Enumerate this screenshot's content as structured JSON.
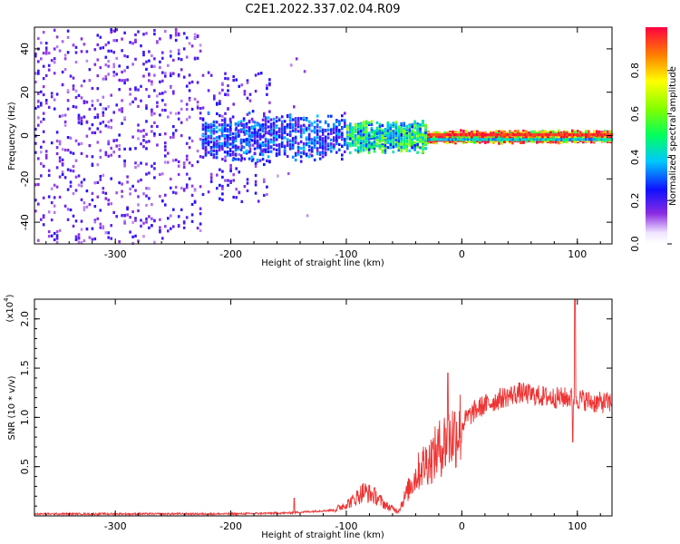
{
  "title": "C2E1.2022.337.02.04.R09",
  "colors": {
    "snr_line": "#ee3333",
    "spectrogram_sparse": "#b98cf0",
    "spectrogram_dense": "#6a00ee",
    "spectrogram_hot": "#00d4e0",
    "axis": "#000000"
  },
  "chart_data": [
    {
      "type": "heatmap",
      "xlabel": "Height of straight line (km)",
      "ylabel": "Frequency (Hz)",
      "xlim": [
        -370,
        130
      ],
      "ylim": [
        -50,
        50
      ],
      "xticks": [
        -300,
        -200,
        -100,
        0,
        100
      ],
      "yticks": [
        -40,
        -20,
        0,
        20,
        40
      ],
      "colorbar": {
        "label": "Normalized spectral amplitude",
        "range": [
          0.0,
          1.0
        ],
        "ticks": [
          0.0,
          0.2,
          0.4,
          0.6,
          0.8
        ],
        "colormap": "rainbow"
      },
      "regions": [
        {
          "x_range": [
            -370,
            -225
          ],
          "freq_spread": 50,
          "density": 0.55,
          "amplitude": 0.18
        },
        {
          "x_range": [
            -225,
            -165
          ],
          "freq_spread": 30,
          "density": 0.4,
          "amplitude": 0.2
        },
        {
          "x_range": [
            -165,
            -130
          ],
          "freq_spread": 45,
          "density": 0.15,
          "amplitude": 0.12
        },
        {
          "x_range": [
            -225,
            -100
          ],
          "freq_spread": 12,
          "density": 0.8,
          "amplitude": 0.3
        },
        {
          "x_range": [
            -100,
            -30
          ],
          "freq_spread": 8,
          "density": 0.9,
          "amplitude": 0.5
        },
        {
          "x_range": [
            -30,
            130
          ],
          "freq_spread": 3,
          "density": 1.0,
          "amplitude": 0.95
        }
      ]
    },
    {
      "type": "line",
      "xlabel": "Height of straight line (km)",
      "ylabel": "SNR (10 * v/v)",
      "yscale_label": "(x10",
      "yscale_exp": "4",
      "xlim": [
        -370,
        130
      ],
      "ylim": [
        0,
        2.2
      ],
      "xticks": [
        -300,
        -200,
        -100,
        0,
        100
      ],
      "yticks": [
        0.5,
        1.0,
        1.5,
        2.0
      ],
      "ytick_labels": [
        "0.5",
        "1.0",
        "1.5",
        "2.0"
      ],
      "envelope": {
        "x": [
          -370,
          -200,
          -150,
          -110,
          -95,
          -85,
          -75,
          -65,
          -55,
          -45,
          -35,
          -25,
          -15,
          -5,
          5,
          15,
          25,
          35,
          50,
          65,
          80,
          95,
          105,
          115,
          130
        ],
        "y": [
          0.02,
          0.02,
          0.03,
          0.06,
          0.15,
          0.25,
          0.2,
          0.1,
          0.05,
          0.3,
          0.5,
          0.6,
          0.75,
          0.85,
          1.0,
          1.1,
          1.15,
          1.2,
          1.25,
          1.22,
          1.2,
          1.2,
          1.18,
          1.15,
          1.15
        ]
      },
      "spikes": [
        {
          "x": -145,
          "y": 0.18
        },
        {
          "x": -12,
          "y": 1.45
        },
        {
          "x": 98,
          "y": 2.2
        },
        {
          "x": 96,
          "y": 0.75
        }
      ]
    }
  ]
}
